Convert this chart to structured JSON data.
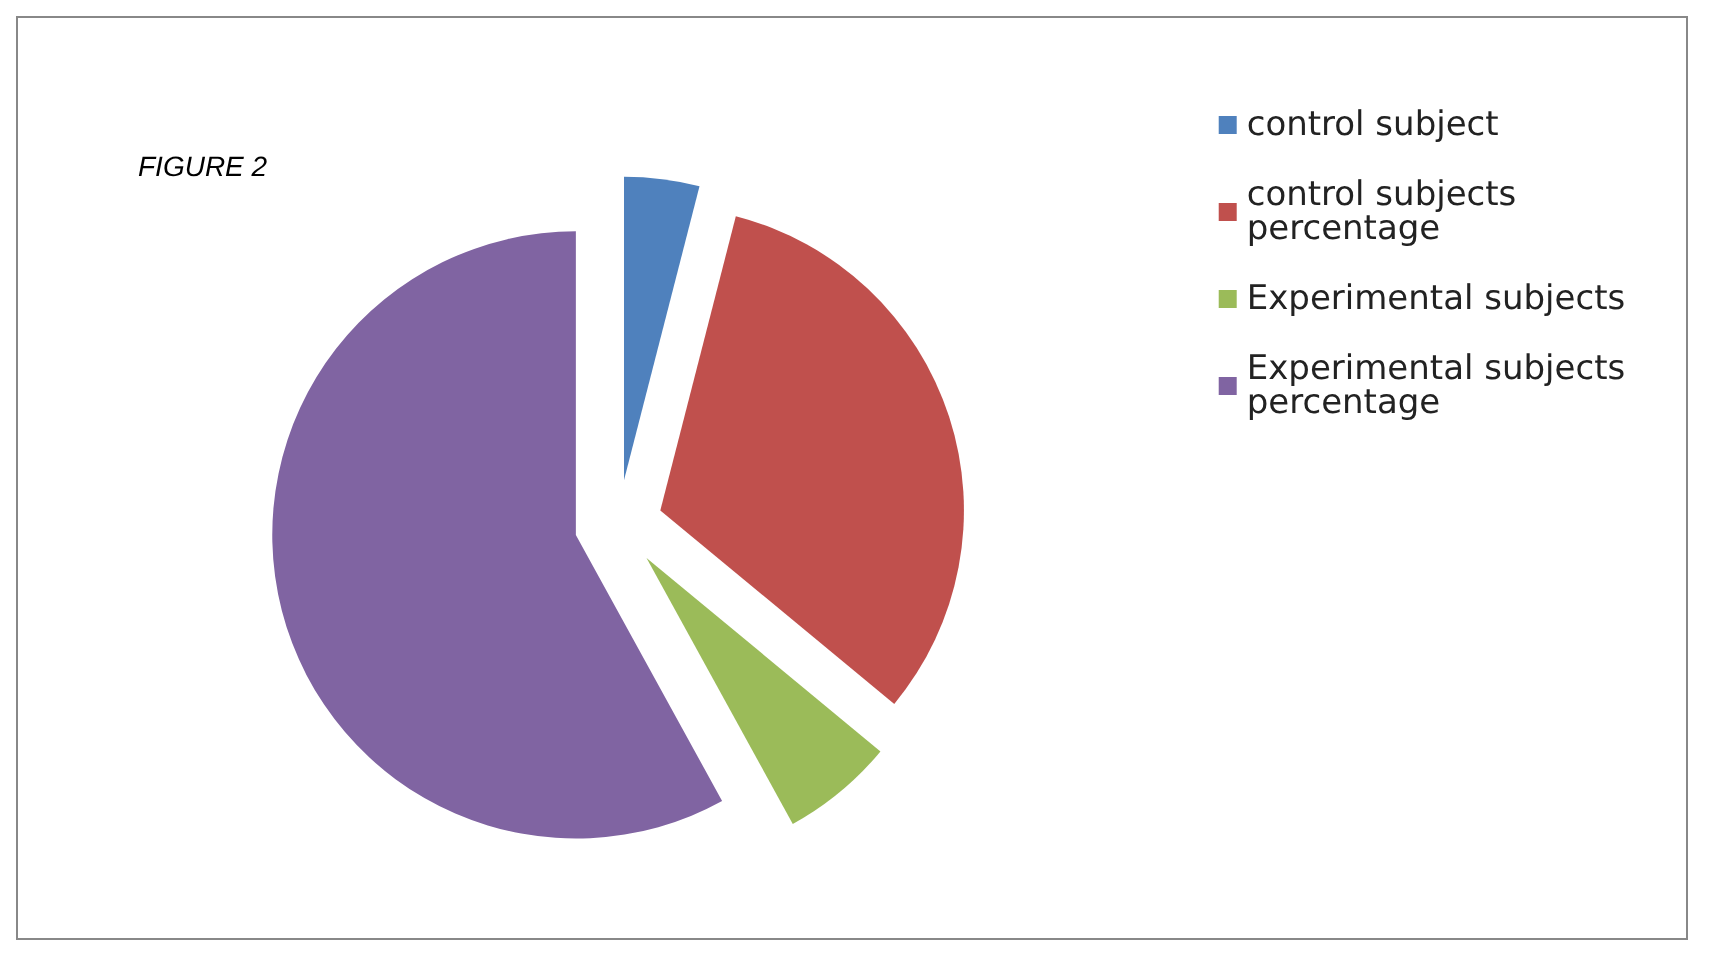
{
  "chart_data": {
    "type": "pie",
    "title": "FIGURE 2",
    "categories": [
      "control subject",
      "control subjects percentage",
      "Experimental subjects",
      "Experimental subjects percentage"
    ],
    "values": [
      4,
      32,
      6,
      58
    ],
    "colors": [
      "#4f81bd",
      "#c0504d",
      "#9bbb59",
      "#8064a2"
    ],
    "legend": "right"
  }
}
